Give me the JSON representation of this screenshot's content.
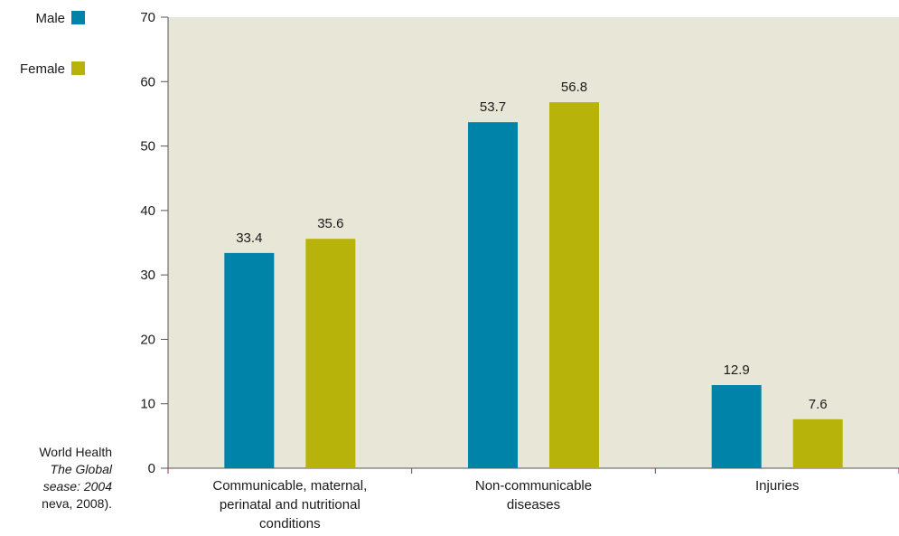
{
  "chart_data": {
    "type": "bar",
    "categories": [
      [
        "Communicable, maternal,",
        "perinatal and nutritional",
        "conditions"
      ],
      [
        "Non-communicable",
        "diseases"
      ],
      [
        "Injuries"
      ]
    ],
    "series": [
      {
        "name": "Male",
        "color": "#0083a9",
        "values": [
          33.4,
          53.7,
          12.9
        ],
        "labels": [
          "33.4",
          "53.7",
          "12.9"
        ]
      },
      {
        "name": "Female",
        "color": "#b8b30a",
        "values": [
          35.6,
          56.8,
          7.6
        ],
        "labels": [
          "35.6",
          "56.8",
          "7.6"
        ]
      }
    ],
    "ylim": [
      0,
      70
    ],
    "yticks": [
      0,
      10,
      20,
      30,
      40,
      50,
      60,
      70
    ],
    "grid": false,
    "plot_background": "#e8e6d6",
    "legend": "top-left"
  },
  "source_note": {
    "lines": [
      "World Health",
      "The Global",
      "sease: 2004",
      "neva, 2008)."
    ],
    "italic": [
      false,
      true,
      true,
      false
    ]
  }
}
